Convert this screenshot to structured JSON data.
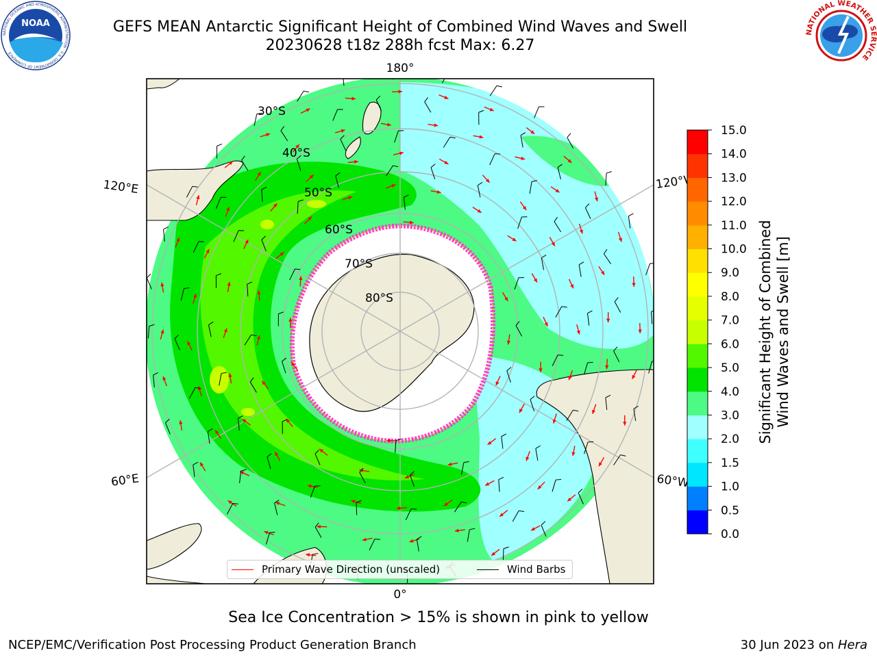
{
  "title": {
    "line1": "GEFS MEAN Antarctic Significant Height of Combined Wind Waves and Swell",
    "line2": "20230628 t18z 288h fcst   Max: 6.27"
  },
  "logos": {
    "noaa_text": "NOAA",
    "noaa_ring": "NATIONAL OCEANIC AND ATMOSPHERIC ADMINISTRATION · U.S. DEPARTMENT OF COMMERCE",
    "nws_ring": "NATIONAL WEATHER SERVICE"
  },
  "map": {
    "projection": "south-polar-stereographic",
    "longitude_labels": {
      "top": "180°",
      "upper_left": "120°E",
      "upper_right": "120°W",
      "lower_left": "60°E",
      "lower_right": "60°W",
      "bottom": "0°"
    },
    "latitude_labels": [
      "30°S",
      "40°S",
      "50°S",
      "60°S",
      "70°S",
      "80°S"
    ],
    "colors": {
      "land": "#efedda",
      "grid": "#b3b3b3",
      "coast": "#000000",
      "ocean_low": "#a0ffff",
      "ocean_mid": "#4dfa83",
      "ocean_high": "#53f700",
      "ice_edge": "#ff3ad6"
    }
  },
  "colorbar": {
    "label_line1": "Significant Height of Combined",
    "label_line2": "Wind Waves and Swell [m]",
    "ticks": [
      "0.0",
      "0.5",
      "1.0",
      "1.5",
      "2.0",
      "3.0",
      "4.0",
      "5.0",
      "6.0",
      "7.0",
      "8.0",
      "9.0",
      "10.0",
      "11.0",
      "12.0",
      "13.0",
      "14.0",
      "15.0"
    ],
    "colors": [
      "#0000ff",
      "#0080ff",
      "#00e6ff",
      "#40ffff",
      "#a0ffff",
      "#4dfa83",
      "#00e400",
      "#53f700",
      "#c8ff00",
      "#e6ff00",
      "#ffff00",
      "#ffe000",
      "#ffb000",
      "#ff8c00",
      "#ff6600",
      "#ff3300",
      "#ff0000"
    ]
  },
  "legend": {
    "primary_wave": "Primary Wave Direction (unscaled)",
    "wind_barbs": "Wind Barbs",
    "primary_color": "#ff0000",
    "barb_color": "#000000"
  },
  "footer": {
    "ice_note": "Sea Ice Concentration > 15% is shown in pink to yellow",
    "credit_left": "NCEP/EMC/Verification Post Processing Product Generation Branch",
    "credit_right_date": "30 Jun 2023 on ",
    "credit_right_host": "Hera"
  }
}
